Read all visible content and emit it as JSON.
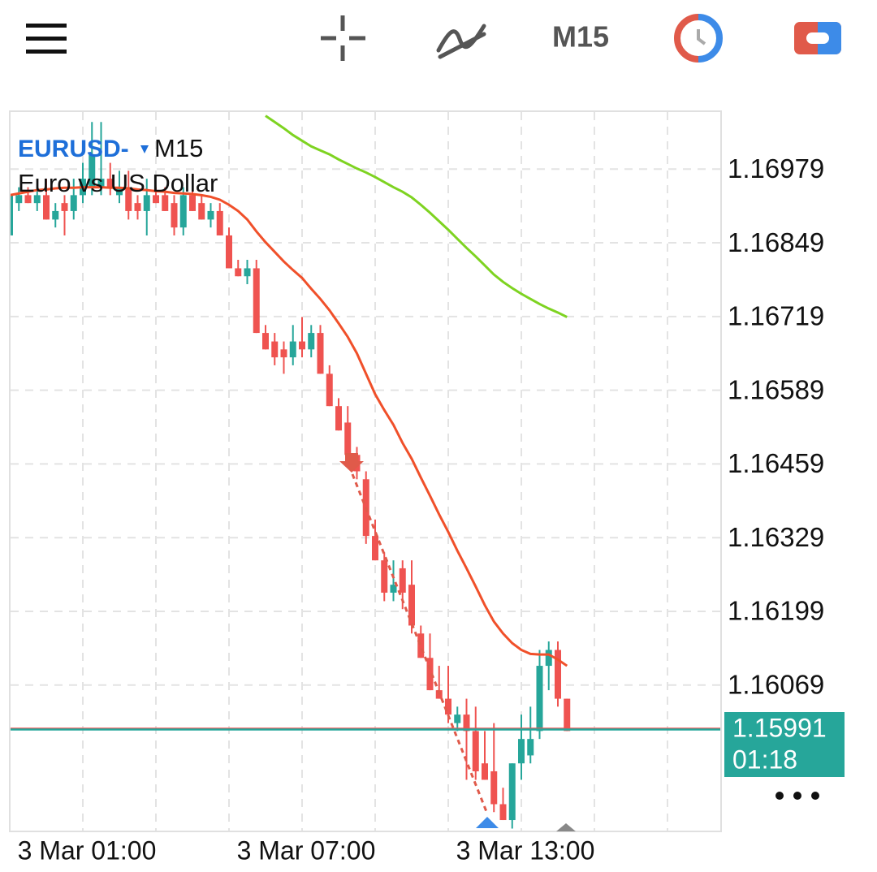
{
  "toolbar": {
    "timeframe": "M15"
  },
  "chart_data": {
    "type": "candlestick",
    "symbol": "EURUSD-",
    "timeframe": "M15",
    "description": "Euro vs US Dollar",
    "categories": [
      null,
      null,
      null,
      null,
      null,
      null,
      null,
      null,
      "3 Mar 01:00",
      null,
      null,
      null,
      null,
      null,
      null,
      null,
      null,
      null,
      null,
      null,
      null,
      null,
      null,
      null,
      null,
      null,
      null,
      null,
      null,
      null,
      null,
      null,
      "3 Mar 07:00",
      null,
      null,
      null,
      null,
      null,
      null,
      null,
      null,
      null,
      null,
      null,
      null,
      null,
      null,
      null,
      null,
      null,
      null,
      null,
      null,
      null,
      null,
      null,
      "3 Mar 13:00",
      null,
      null,
      null,
      null,
      null
    ],
    "open": [
      1.16862,
      1.16919,
      1.16933,
      1.16919,
      1.16933,
      1.1689,
      1.16919,
      1.16905,
      1.16933,
      1.16947,
      1.16947,
      1.16962,
      1.16933,
      1.16947,
      1.16919,
      1.16905,
      1.16933,
      1.16933,
      1.16919,
      1.16876,
      1.16933,
      1.16919,
      1.1689,
      1.16905,
      1.16862,
      1.16804,
      1.1679,
      1.16804,
      1.1669,
      1.16675,
      1.16661,
      1.16647,
      1.16675,
      1.16661,
      1.1669,
      1.16618,
      1.16561,
      1.16532,
      1.16475,
      1.16432,
      1.16332,
      1.16289,
      1.16232,
      1.16275,
      1.16246,
      1.1616,
      1.16117,
      1.1606,
      1.16045,
      1.16002,
      1.16017,
      1.15988,
      1.15931,
      1.15917,
      1.15859,
      1.15831,
      1.15931,
      1.15945,
      1.15988,
      1.16103,
      1.16131,
      1.16045
    ],
    "high": [
      1.16947,
      1.16947,
      1.16947,
      1.16947,
      1.16962,
      1.16919,
      1.16933,
      1.16962,
      1.1699,
      1.17062,
      1.17062,
      1.1699,
      1.16976,
      1.16976,
      1.16933,
      1.16962,
      1.16947,
      1.16947,
      1.16933,
      1.16947,
      1.16947,
      1.16933,
      1.16919,
      1.16919,
      1.16876,
      1.16819,
      1.16819,
      1.16819,
      1.16704,
      1.1669,
      1.16675,
      1.16704,
      1.16718,
      1.16704,
      1.16704,
      1.16633,
      1.16575,
      1.16561,
      1.16489,
      1.16446,
      1.16361,
      1.16303,
      1.16289,
      1.16289,
      1.16289,
      1.16174,
      1.1616,
      1.16103,
      1.16103,
      1.16031,
      1.16045,
      1.16031,
      1.15988,
      1.16002,
      1.15888,
      1.15931,
      1.16017,
      1.16031,
      1.16131,
      1.16146,
      1.16146,
      1.16045
    ],
    "low": [
      1.16847,
      1.16905,
      1.16919,
      1.16905,
      1.1689,
      1.16876,
      1.16862,
      1.1689,
      1.16919,
      1.16933,
      1.16933,
      1.16933,
      1.16919,
      1.1689,
      1.1689,
      1.16862,
      1.16919,
      1.16905,
      1.16862,
      1.16862,
      1.16905,
      1.1689,
      1.16876,
      1.16862,
      1.16804,
      1.1679,
      1.16776,
      1.1669,
      1.16661,
      1.16633,
      1.16618,
      1.16633,
      1.16647,
      1.16647,
      1.16618,
      1.16561,
      1.16518,
      1.16475,
      1.16432,
      1.16318,
      1.16289,
      1.16217,
      1.16217,
      1.16203,
      1.1616,
      1.16117,
      1.1606,
      1.16045,
      1.16002,
      1.15988,
      1.15902,
      1.15902,
      1.15902,
      1.15845,
      1.15831,
      1.15816,
      1.15902,
      1.15931,
      1.15974,
      1.1606,
      1.16031,
      1.15988
    ],
    "close": [
      1.16933,
      1.16933,
      1.16919,
      1.16933,
      1.1689,
      1.16905,
      1.16905,
      1.16933,
      1.16962,
      1.17005,
      1.16962,
      1.16947,
      1.16947,
      1.16905,
      1.16905,
      1.16933,
      1.16919,
      1.16905,
      1.16876,
      1.16933,
      1.16905,
      1.1689,
      1.16905,
      1.16862,
      1.16804,
      1.1679,
      1.16804,
      1.1669,
      1.16661,
      1.16647,
      1.16647,
      1.16675,
      1.16661,
      1.1669,
      1.16618,
      1.16561,
      1.16518,
      1.16475,
      1.16446,
      1.16332,
      1.16289,
      1.16232,
      1.16246,
      1.16232,
      1.16174,
      1.16117,
      1.1606,
      1.16045,
      1.16017,
      1.16017,
      1.15988,
      1.15917,
      1.15902,
      1.15859,
      1.15831,
      1.15931,
      1.15974,
      1.15974,
      1.16103,
      1.16131,
      1.16045,
      1.15988
    ],
    "up_color": "#26a69a",
    "down_color": "#ef5350",
    "moving_averages": [
      {
        "color": "#f0502a",
        "values": [
          1.16933,
          1.16936,
          1.16939,
          1.16942,
          1.16943,
          1.16945,
          1.16946,
          1.16946,
          1.16947,
          1.16947,
          1.16947,
          1.16946,
          1.16946,
          1.16945,
          1.16943,
          1.16942,
          1.1694,
          1.16939,
          1.16937,
          1.16936,
          1.16935,
          1.16933,
          1.1693,
          1.16925,
          1.16916,
          1.16905,
          1.1689,
          1.16869,
          1.1685,
          1.16833,
          1.16816,
          1.16801,
          1.16787,
          1.16768,
          1.1675,
          1.1673,
          1.16707,
          1.16683,
          1.16654,
          1.16618,
          1.16582,
          1.16554,
          1.16528,
          1.16496,
          1.16468,
          1.16435,
          1.16403,
          1.1637,
          1.16339,
          1.16306,
          1.16275,
          1.16243,
          1.1621,
          1.16181,
          1.1616,
          1.16143,
          1.16131,
          1.16124,
          1.16123,
          1.16123,
          1.16114,
          1.16103
        ]
      },
      {
        "color": "#7ed321",
        "values": [
          null,
          null,
          null,
          null,
          null,
          null,
          null,
          null,
          null,
          null,
          null,
          null,
          null,
          null,
          null,
          null,
          null,
          null,
          null,
          null,
          null,
          null,
          null,
          null,
          null,
          null,
          null,
          null,
          1.17073,
          1.17062,
          1.17051,
          1.17039,
          1.17029,
          1.17019,
          1.17012,
          1.17005,
          1.16996,
          1.16988,
          1.1698,
          1.16973,
          1.16965,
          1.16956,
          1.16947,
          1.16939,
          1.16929,
          1.16916,
          1.16902,
          1.16887,
          1.16872,
          1.16856,
          1.1684,
          1.16825,
          1.16809,
          1.16793,
          1.1678,
          1.16769,
          1.16759,
          1.1675,
          1.16741,
          1.16733,
          1.16726,
          1.16718
        ]
      }
    ],
    "last_price": 1.15991,
    "countdown": "01:18",
    "price_box_color": "#26a69a",
    "ylim": [
      1.15811,
      1.17081
    ],
    "yticks": [
      1.16979,
      1.16849,
      1.16719,
      1.16589,
      1.16459,
      1.16329,
      1.16199,
      1.16069
    ],
    "grid": true
  }
}
